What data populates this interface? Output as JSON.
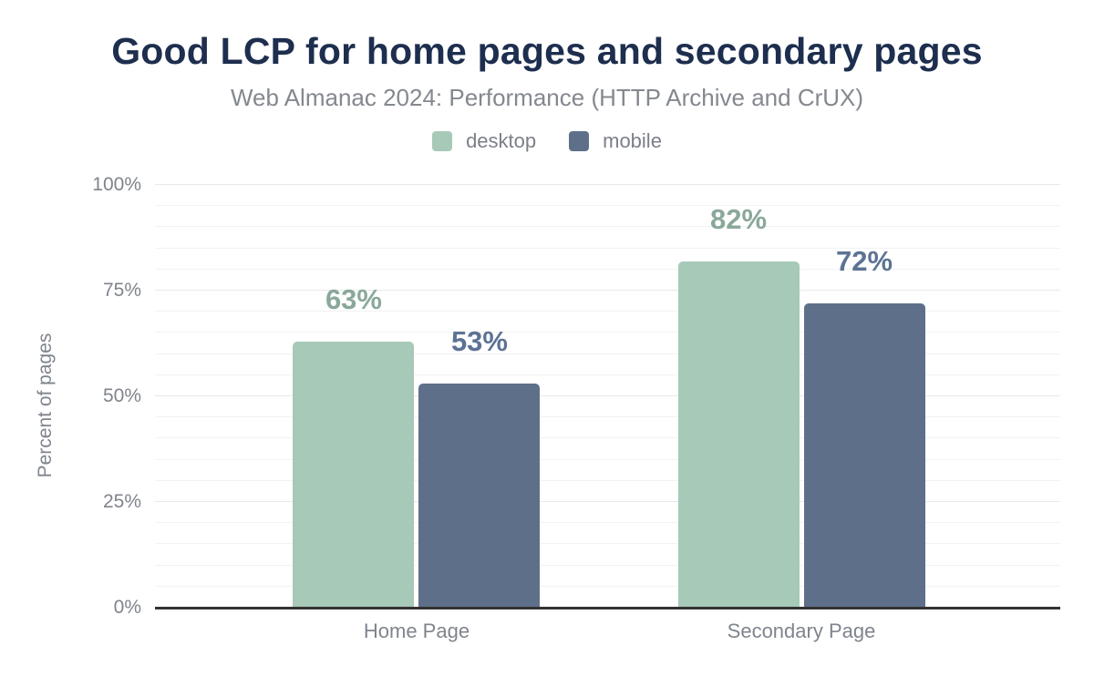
{
  "chart_data": {
    "type": "bar",
    "title": "Good LCP for home pages and secondary pages",
    "subtitle": "Web Almanac 2024: Performance (HTTP Archive and CrUX)",
    "categories": [
      "Home Page",
      "Secondary Page"
    ],
    "series": [
      {
        "name": "desktop",
        "values": [
          63,
          82
        ],
        "display_values": [
          "63%",
          "82%"
        ],
        "color": "#a7c9b8",
        "label_color": "#8aa89a"
      },
      {
        "name": "mobile",
        "values": [
          53,
          72
        ],
        "display_values": [
          "53%",
          "72%"
        ],
        "color": "#5e7089",
        "label_color": "#5d7394"
      }
    ],
    "xlabel": "",
    "ylabel": "Percent of pages",
    "ylim": [
      0,
      100
    ],
    "yticks": [
      0,
      25,
      50,
      75,
      100
    ],
    "ytick_labels": [
      "0%",
      "25%",
      "50%",
      "75%",
      "100%"
    ],
    "minor_grid_step": 5,
    "grid": true,
    "legend_position": "top"
  },
  "colors": {
    "background": "#ffffff",
    "title": "#1d2e4e",
    "subtitle": "#84888f",
    "axis_text": "#7f848d",
    "legend_text": "#7b7f87",
    "axis_line": "#333333",
    "grid_major": "#e6e8eb",
    "grid_minor": "#f1f2f4"
  }
}
